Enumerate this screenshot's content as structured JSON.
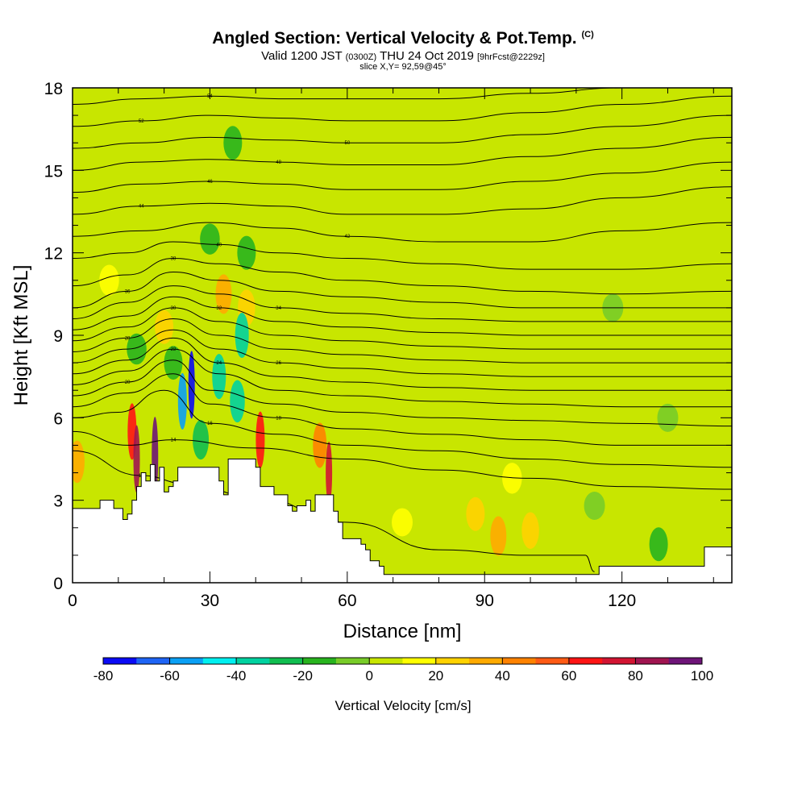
{
  "title": {
    "main": "Angled Section: Vertical Velocity & Pot.Temp.",
    "units_tag": "(C)",
    "valid_prefix": "Valid 1200 JST",
    "valid_utc": "(0300Z)",
    "valid_date": "THU 24 Oct 2019",
    "forecast": "[9hrFcst@2229z]",
    "slice": "slice X,Y= 92,59@45°"
  },
  "chart_data": {
    "type": "heatmap",
    "title": "Angled Section: Vertical Velocity & Pot.Temp.",
    "xlabel": "Distance [nm]",
    "ylabel": "Height [Kft MSL]",
    "xlim": [
      0,
      144
    ],
    "ylim": [
      0,
      18
    ],
    "xticks": [
      0,
      30,
      60,
      90,
      120
    ],
    "yticks": [
      0,
      3,
      6,
      9,
      12,
      15,
      18
    ],
    "x_tick_labels": [
      "0",
      "30",
      "60",
      "90",
      "120"
    ],
    "y_tick_labels": [
      "0",
      "3",
      "6",
      "9",
      "12",
      "15",
      "18"
    ],
    "colorbar": {
      "label": "Vertical Velocity [cm/s]",
      "min": -80,
      "max": 100,
      "step": 10,
      "tick_values": [
        "-80",
        "-60",
        "-40",
        "-20",
        "0",
        "20",
        "40",
        "60",
        "80",
        "100"
      ],
      "colors": [
        "#0a0af5",
        "#1e64f5",
        "#0aa0f5",
        "#00f0f0",
        "#00d2a0",
        "#10be50",
        "#28b41e",
        "#78cc28",
        "#c8e600",
        "#ffff00",
        "#ffd200",
        "#ffaa00",
        "#ff8200",
        "#ff5a14",
        "#ff1414",
        "#d21432",
        "#a01450",
        "#6e1478"
      ]
    },
    "background_value": 5,
    "velocity_features": [
      {
        "x": 26,
        "y": 7.2,
        "value": -80
      },
      {
        "x": 24,
        "y": 6.6,
        "value": -60
      },
      {
        "x": 28,
        "y": 5.2,
        "value": -30
      },
      {
        "x": 32,
        "y": 7.5,
        "value": -40
      },
      {
        "x": 37,
        "y": 9.0,
        "value": -40
      },
      {
        "x": 36,
        "y": 6.6,
        "value": -35
      },
      {
        "x": 22,
        "y": 8.0,
        "value": -20
      },
      {
        "x": 30,
        "y": 12.5,
        "value": -15
      },
      {
        "x": 14,
        "y": 8.5,
        "value": -15
      },
      {
        "x": 35,
        "y": 16.0,
        "value": -20
      },
      {
        "x": 38,
        "y": 12.0,
        "value": -20
      },
      {
        "x": 14,
        "y": 4.5,
        "value": 80
      },
      {
        "x": 18,
        "y": 4.6,
        "value": 100
      },
      {
        "x": 13,
        "y": 5.5,
        "value": 60
      },
      {
        "x": 41,
        "y": 5.2,
        "value": 60
      },
      {
        "x": 56,
        "y": 4.0,
        "value": 70
      },
      {
        "x": 54,
        "y": 5.0,
        "value": 40
      },
      {
        "x": 1,
        "y": 4.4,
        "value": 35
      },
      {
        "x": 33,
        "y": 10.5,
        "value": 30
      },
      {
        "x": 38,
        "y": 10.0,
        "value": 25
      },
      {
        "x": 93,
        "y": 1.7,
        "value": 30
      },
      {
        "x": 100,
        "y": 1.9,
        "value": 25
      },
      {
        "x": 88,
        "y": 2.5,
        "value": 20
      },
      {
        "x": 96,
        "y": 3.8,
        "value": 15
      },
      {
        "x": 72,
        "y": 2.2,
        "value": 10
      },
      {
        "x": 128,
        "y": 1.4,
        "value": -20
      },
      {
        "x": 114,
        "y": 2.8,
        "value": -10
      },
      {
        "x": 8,
        "y": 11.0,
        "value": 15
      },
      {
        "x": 20,
        "y": 9.3,
        "value": 20
      },
      {
        "x": 130,
        "y": 6.0,
        "value": -10
      },
      {
        "x": 118,
        "y": 10.0,
        "value": -10
      }
    ],
    "potential_temperature_contours": [
      {
        "label": "12",
        "levels": [
          [
            0,
            4.8
          ],
          [
            15,
            3.9
          ],
          [
            25,
            3.6
          ],
          [
            40,
            3.1
          ],
          [
            60,
            2.2
          ],
          [
            80,
            1.2
          ],
          [
            100,
            1.0
          ],
          [
            112,
            1.0
          ],
          [
            114,
            0.4
          ]
        ]
      },
      {
        "label": "14",
        "levels": [
          [
            0,
            5.5
          ],
          [
            12,
            5.0
          ],
          [
            22,
            5.2
          ],
          [
            40,
            4.9
          ],
          [
            60,
            4.5
          ],
          [
            80,
            4.1
          ],
          [
            100,
            3.8
          ],
          [
            120,
            3.5
          ],
          [
            144,
            3.4
          ]
        ]
      },
      {
        "label": "16",
        "levels": [
          [
            0,
            6.0
          ],
          [
            10,
            6.2
          ],
          [
            20,
            7.0
          ],
          [
            30,
            5.8
          ],
          [
            45,
            5.4
          ],
          [
            60,
            5.0
          ],
          [
            80,
            4.8
          ],
          [
            100,
            4.5
          ],
          [
            120,
            4.3
          ],
          [
            144,
            4.2
          ]
        ]
      },
      {
        "label": "18",
        "levels": [
          [
            0,
            6.4
          ],
          [
            12,
            6.9
          ],
          [
            22,
            7.6
          ],
          [
            30,
            6.5
          ],
          [
            45,
            6.0
          ],
          [
            60,
            5.6
          ],
          [
            80,
            5.4
          ],
          [
            100,
            5.2
          ],
          [
            120,
            5.0
          ],
          [
            144,
            5.0
          ]
        ]
      },
      {
        "label": "20",
        "levels": [
          [
            0,
            6.8
          ],
          [
            12,
            7.3
          ],
          [
            22,
            8.1
          ],
          [
            30,
            7.0
          ],
          [
            45,
            6.5
          ],
          [
            60,
            6.2
          ],
          [
            80,
            6.0
          ],
          [
            100,
            5.9
          ],
          [
            120,
            5.8
          ],
          [
            144,
            5.7
          ]
        ]
      },
      {
        "label": "22",
        "levels": [
          [
            0,
            7.2
          ],
          [
            12,
            7.7
          ],
          [
            22,
            8.5
          ],
          [
            32,
            7.6
          ],
          [
            45,
            7.0
          ],
          [
            60,
            6.8
          ],
          [
            80,
            6.6
          ],
          [
            100,
            6.5
          ],
          [
            120,
            6.4
          ],
          [
            144,
            6.4
          ]
        ]
      },
      {
        "label": "24",
        "levels": [
          [
            0,
            7.6
          ],
          [
            12,
            8.1
          ],
          [
            22,
            8.9
          ],
          [
            32,
            8.0
          ],
          [
            45,
            7.5
          ],
          [
            60,
            7.3
          ],
          [
            80,
            7.1
          ],
          [
            100,
            7.0
          ],
          [
            120,
            7.0
          ],
          [
            144,
            7.0
          ]
        ]
      },
      {
        "label": "26",
        "levels": [
          [
            0,
            8.0
          ],
          [
            12,
            8.5
          ],
          [
            22,
            9.2
          ],
          [
            32,
            8.5
          ],
          [
            45,
            8.0
          ],
          [
            60,
            7.8
          ],
          [
            80,
            7.6
          ],
          [
            100,
            7.5
          ],
          [
            120,
            7.5
          ],
          [
            144,
            7.5
          ]
        ]
      },
      {
        "label": "28",
        "levels": [
          [
            0,
            8.4
          ],
          [
            12,
            8.9
          ],
          [
            22,
            9.6
          ],
          [
            32,
            9.0
          ],
          [
            45,
            8.5
          ],
          [
            60,
            8.3
          ],
          [
            80,
            8.1
          ],
          [
            100,
            8.0
          ],
          [
            120,
            8.0
          ],
          [
            144,
            8.0
          ]
        ]
      },
      {
        "label": "30",
        "levels": [
          [
            0,
            8.8
          ],
          [
            12,
            9.3
          ],
          [
            22,
            10.0
          ],
          [
            32,
            9.5
          ],
          [
            45,
            9.0
          ],
          [
            60,
            8.8
          ],
          [
            80,
            8.6
          ],
          [
            100,
            8.5
          ],
          [
            120,
            8.5
          ],
          [
            144,
            8.5
          ]
        ]
      },
      {
        "label": "32",
        "levels": [
          [
            0,
            9.2
          ],
          [
            12,
            9.7
          ],
          [
            22,
            10.4
          ],
          [
            32,
            10.0
          ],
          [
            45,
            9.5
          ],
          [
            60,
            9.3
          ],
          [
            80,
            9.1
          ],
          [
            100,
            9.0
          ],
          [
            120,
            9.0
          ],
          [
            144,
            9.0
          ]
        ]
      },
      {
        "label": "34",
        "levels": [
          [
            0,
            9.6
          ],
          [
            12,
            10.2
          ],
          [
            22,
            10.8
          ],
          [
            32,
            10.5
          ],
          [
            45,
            10.0
          ],
          [
            60,
            9.8
          ],
          [
            80,
            9.6
          ],
          [
            100,
            9.5
          ],
          [
            120,
            9.5
          ],
          [
            144,
            9.5
          ]
        ]
      },
      {
        "label": "36",
        "levels": [
          [
            0,
            10.0
          ],
          [
            12,
            10.6
          ],
          [
            22,
            11.3
          ],
          [
            32,
            11.0
          ],
          [
            45,
            10.6
          ],
          [
            60,
            10.4
          ],
          [
            80,
            10.2
          ],
          [
            100,
            10.0
          ],
          [
            120,
            10.0
          ],
          [
            144,
            10.0
          ]
        ]
      },
      {
        "label": "38",
        "levels": [
          [
            0,
            10.8
          ],
          [
            12,
            11.2
          ],
          [
            22,
            11.8
          ],
          [
            32,
            11.6
          ],
          [
            45,
            11.3
          ],
          [
            60,
            11.0
          ],
          [
            80,
            10.8
          ],
          [
            100,
            10.6
          ],
          [
            120,
            10.5
          ],
          [
            144,
            10.6
          ]
        ]
      },
      {
        "label": "40",
        "levels": [
          [
            0,
            11.8
          ],
          [
            12,
            12.0
          ],
          [
            22,
            12.4
          ],
          [
            32,
            12.3
          ],
          [
            45,
            12.0
          ],
          [
            60,
            11.8
          ],
          [
            80,
            11.6
          ],
          [
            100,
            11.4
          ],
          [
            120,
            11.4
          ],
          [
            144,
            11.6
          ]
        ]
      },
      {
        "label": "42",
        "levels": [
          [
            0,
            12.6
          ],
          [
            15,
            12.8
          ],
          [
            30,
            13.1
          ],
          [
            45,
            12.9
          ],
          [
            60,
            12.6
          ],
          [
            80,
            12.4
          ],
          [
            100,
            12.4
          ],
          [
            120,
            12.8
          ],
          [
            144,
            13.1
          ]
        ]
      },
      {
        "label": "44",
        "levels": [
          [
            0,
            13.4
          ],
          [
            15,
            13.7
          ],
          [
            30,
            13.8
          ],
          [
            45,
            13.7
          ],
          [
            60,
            13.4
          ],
          [
            80,
            13.4
          ],
          [
            100,
            13.6
          ],
          [
            120,
            14.0
          ],
          [
            144,
            14.4
          ]
        ]
      },
      {
        "label": "46",
        "levels": [
          [
            0,
            14.2
          ],
          [
            15,
            14.5
          ],
          [
            30,
            14.6
          ],
          [
            45,
            14.5
          ],
          [
            60,
            14.3
          ],
          [
            80,
            14.3
          ],
          [
            100,
            14.6
          ],
          [
            120,
            14.9
          ],
          [
            144,
            15.3
          ]
        ]
      },
      {
        "label": "48",
        "levels": [
          [
            0,
            15.0
          ],
          [
            15,
            15.3
          ],
          [
            30,
            15.4
          ],
          [
            45,
            15.3
          ],
          [
            60,
            15.2
          ],
          [
            80,
            15.2
          ],
          [
            100,
            15.5
          ],
          [
            120,
            15.8
          ],
          [
            144,
            16.2
          ]
        ]
      },
      {
        "label": "50",
        "levels": [
          [
            0,
            15.8
          ],
          [
            15,
            16.0
          ],
          [
            30,
            16.2
          ],
          [
            45,
            16.1
          ],
          [
            60,
            16.0
          ],
          [
            80,
            16.0
          ],
          [
            100,
            16.3
          ],
          [
            120,
            16.6
          ],
          [
            144,
            17.0
          ]
        ]
      },
      {
        "label": "52",
        "levels": [
          [
            0,
            16.6
          ],
          [
            15,
            16.8
          ],
          [
            30,
            17.0
          ],
          [
            45,
            16.9
          ],
          [
            60,
            16.8
          ],
          [
            80,
            16.8
          ],
          [
            100,
            17.1
          ],
          [
            120,
            17.4
          ],
          [
            144,
            17.7
          ]
        ]
      },
      {
        "label": "54",
        "levels": [
          [
            0,
            17.4
          ],
          [
            15,
            17.6
          ],
          [
            30,
            17.7
          ],
          [
            45,
            17.6
          ],
          [
            60,
            17.6
          ],
          [
            80,
            17.6
          ],
          [
            100,
            17.8
          ],
          [
            120,
            18.0
          ]
        ]
      }
    ],
    "terrain_profile": [
      [
        0,
        2.7
      ],
      [
        3,
        2.7
      ],
      [
        6,
        3.0
      ],
      [
        9,
        2.7
      ],
      [
        10,
        2.7
      ],
      [
        11,
        2.3
      ],
      [
        12,
        2.5
      ],
      [
        13,
        3.0
      ],
      [
        14,
        3.5
      ],
      [
        15,
        4.0
      ],
      [
        16,
        3.7
      ],
      [
        17,
        4.3
      ],
      [
        18,
        3.7
      ],
      [
        19,
        4.2
      ],
      [
        20,
        3.3
      ],
      [
        21,
        3.5
      ],
      [
        22,
        3.7
      ],
      [
        23,
        4.2
      ],
      [
        26,
        4.2
      ],
      [
        30,
        4.2
      ],
      [
        32,
        3.7
      ],
      [
        33,
        3.2
      ],
      [
        34,
        4.5
      ],
      [
        36,
        4.5
      ],
      [
        39,
        4.5
      ],
      [
        40,
        4.2
      ],
      [
        41,
        3.5
      ],
      [
        44,
        3.2
      ],
      [
        47,
        2.8
      ],
      [
        48,
        2.6
      ],
      [
        49,
        2.8
      ],
      [
        51,
        3.0
      ],
      [
        52,
        2.6
      ],
      [
        53,
        3.2
      ],
      [
        56,
        3.2
      ],
      [
        57,
        2.6
      ],
      [
        58,
        2.2
      ],
      [
        59,
        1.6
      ],
      [
        62,
        1.6
      ],
      [
        63,
        1.4
      ],
      [
        64,
        1.2
      ],
      [
        65,
        0.8
      ],
      [
        67,
        0.6
      ],
      [
        68,
        0.3
      ],
      [
        114,
        0.3
      ],
      [
        115,
        0.6
      ],
      [
        130,
        0.6
      ],
      [
        138,
        0.6
      ],
      [
        138,
        1.3
      ],
      [
        144,
        1.3
      ]
    ]
  }
}
